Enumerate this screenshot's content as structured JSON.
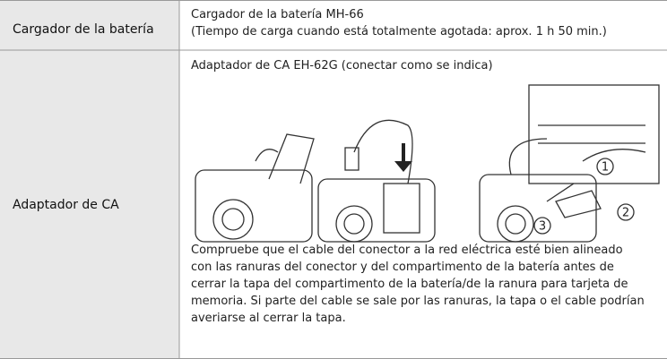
{
  "table": {
    "rows": [
      {
        "label": "Cargador de la batería",
        "lines": [
          "Cargador de la batería MH-66",
          "(Tiempo de carga cuando está totalmente agotada: aprox. 1 h 50 min.)"
        ]
      },
      {
        "label": "Adaptador de CA",
        "caption": "Adaptador de CA EH-62G (conectar como se indica)",
        "callouts": [
          "1",
          "2",
          "3"
        ],
        "lines": [
          "Compruebe que el cable del conector a la red eléctrica esté bien alineado",
          "con las ranuras del conector y del compartimento de la batería antes de",
          "cerrar la tapa del compartimento de la batería/de la ranura para tarjeta de",
          "memoria. Si parte del cable se sale por las ranuras, la tapa o el cable podrían",
          "averiarse al cerrar la tapa."
        ]
      }
    ]
  }
}
